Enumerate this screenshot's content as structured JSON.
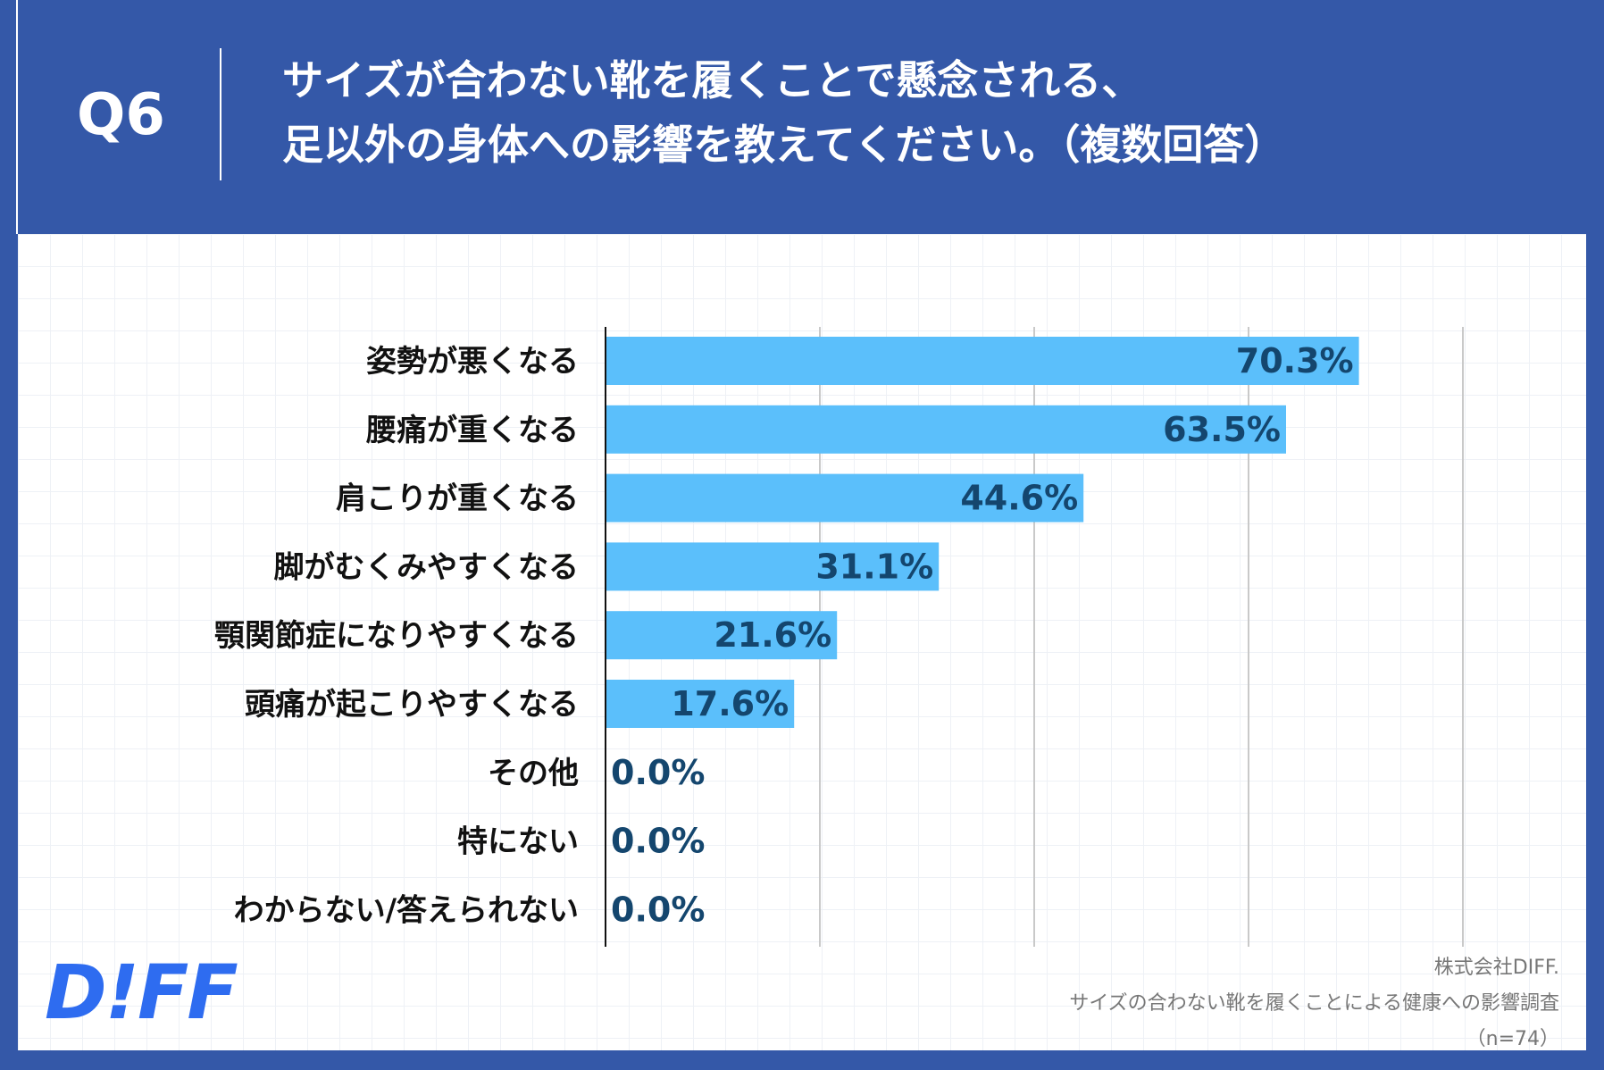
{
  "header": {
    "qnum": "Q6",
    "title_line1": "サイズが合わない靴を履くことで懸念される、",
    "title_line2": "足以外の身体への影響を教えてください。（複数回答）"
  },
  "logo": {
    "text": "D!FF"
  },
  "credit": {
    "company": "株式会社DIFF.",
    "survey": "サイズの合わない靴を履くことによる健康への影響調査",
    "sample": "（n=74）"
  },
  "colors": {
    "header_bg": "#3458a8",
    "bar": "#5bbffb",
    "value_text": "#14466e",
    "label_text": "#111111",
    "logo": "#2e6cf0"
  },
  "chart_data": {
    "type": "bar",
    "orientation": "horizontal",
    "categories": [
      "姿勢が悪くなる",
      "腰痛が重くなる",
      "肩こりが重くなる",
      "脚がむくみやすくなる",
      "顎関節症になりやすくなる",
      "頭痛が起こりやすくなる",
      "その他",
      "特にない",
      "わからない/答えられない"
    ],
    "values": [
      70.3,
      63.5,
      44.6,
      31.1,
      21.6,
      17.6,
      0.0,
      0.0,
      0.0
    ],
    "value_labels": [
      "70.3%",
      "63.5%",
      "44.6%",
      "31.1%",
      "21.6%",
      "17.6%",
      "0.0%",
      "0.0%",
      "0.0%"
    ],
    "xlim": [
      0,
      80
    ],
    "gridlines_x": [
      0,
      20,
      40,
      60,
      80
    ],
    "unit": "%"
  }
}
